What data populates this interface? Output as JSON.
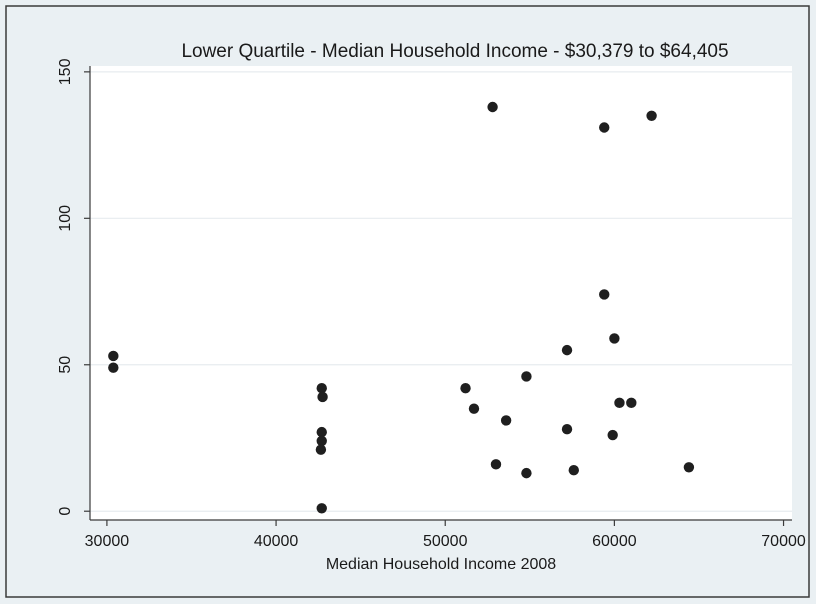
{
  "chart_data": {
    "type": "scatter",
    "title": "Lower Quartile - Median Household Income - $30,379 to $64,405",
    "xlabel": "Median Household Income 2008",
    "ylabel": "",
    "xlim": [
      29000,
      70500
    ],
    "ylim": [
      -3,
      152
    ],
    "xticks": [
      30000,
      40000,
      50000,
      60000,
      70000
    ],
    "yticks": [
      0,
      50,
      100,
      150
    ],
    "grid": "horizontal",
    "legend": "none",
    "colors": {
      "marker": "#1f1f1f",
      "background": "#eaf0f3",
      "plot_area": "#ffffff",
      "frame": "#3a3a3a",
      "grid": "#e7ecef"
    },
    "points": [
      {
        "x": 30379,
        "y": 53
      },
      {
        "x": 30379,
        "y": 49
      },
      {
        "x": 42700,
        "y": 42
      },
      {
        "x": 42750,
        "y": 39
      },
      {
        "x": 42700,
        "y": 27
      },
      {
        "x": 42700,
        "y": 24
      },
      {
        "x": 42650,
        "y": 21
      },
      {
        "x": 42700,
        "y": 1
      },
      {
        "x": 51200,
        "y": 42
      },
      {
        "x": 51700,
        "y": 35
      },
      {
        "x": 52800,
        "y": 138
      },
      {
        "x": 53000,
        "y": 16
      },
      {
        "x": 53600,
        "y": 31
      },
      {
        "x": 54800,
        "y": 46
      },
      {
        "x": 54800,
        "y": 13
      },
      {
        "x": 57200,
        "y": 55
      },
      {
        "x": 57200,
        "y": 28
      },
      {
        "x": 57600,
        "y": 14
      },
      {
        "x": 59400,
        "y": 131
      },
      {
        "x": 59400,
        "y": 74
      },
      {
        "x": 59900,
        "y": 26
      },
      {
        "x": 60000,
        "y": 59
      },
      {
        "x": 60300,
        "y": 37
      },
      {
        "x": 61000,
        "y": 37
      },
      {
        "x": 62200,
        "y": 135
      },
      {
        "x": 64405,
        "y": 15
      }
    ]
  }
}
